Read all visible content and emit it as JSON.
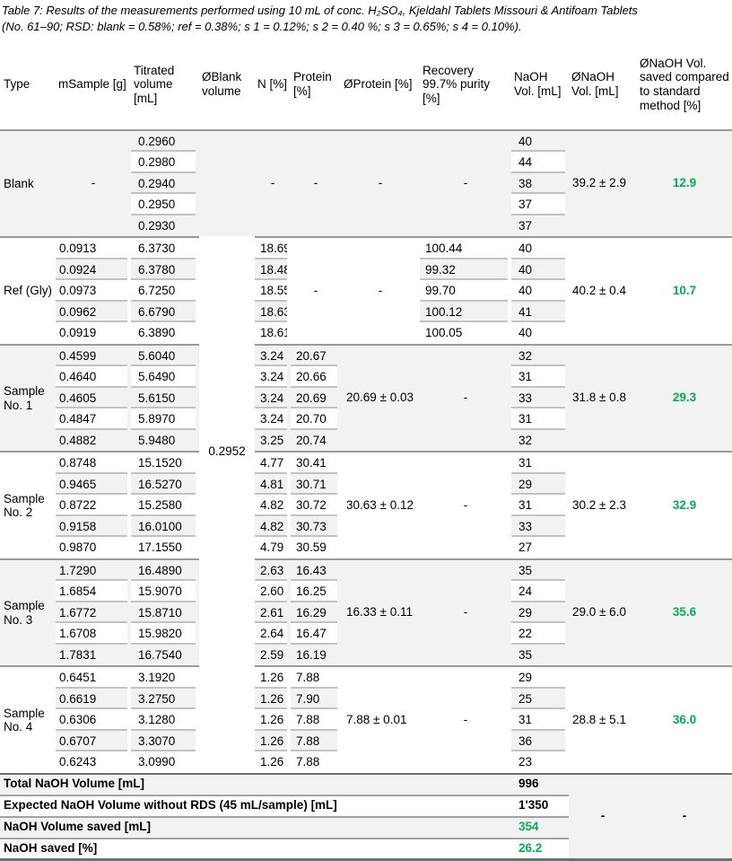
{
  "caption": {
    "line1": "Table 7: Results of the measurements performed using 10 mL of conc. H₂SO₄, Kjeldahl Tablets Missouri & Antifoam Tablets",
    "line2": "(No. 61–90; RSD: blank = 0.58%; ref = 0.38%; s 1 = 0.12%; s 2 = 0.40 %; s 3 = 0.65%; s 4 = 0.10%)."
  },
  "colors": {
    "accent_green": "#00b050",
    "block_gray": "#f2f2f2"
  },
  "table": {
    "headers": [
      "Type",
      "mSample [g]",
      "Titrated volume [mL]",
      "ØBlank volume",
      "N [%]",
      "Protein [%]",
      "ØProtein [%]",
      "Recovery 99.7% purity [%]",
      "NaOH Vol. [mL]",
      "ØNaOH Vol. [mL]",
      "ØNaOH Vol. saved compared to standard method [%]"
    ],
    "oblank_value": "0.2952",
    "blocks": [
      {
        "type": "Blank",
        "shade": "gray",
        "msample": "-",
        "titrated": [
          "0.2960",
          "0.2980",
          "0.2940",
          "0.2950",
          "0.2930"
        ],
        "n": "-",
        "protein": "-",
        "oprotein": "-",
        "recovery": "-",
        "naoh": [
          "40",
          "44",
          "38",
          "37",
          "37"
        ],
        "onaoh": "39.2 ± 2.9",
        "saved": "12.9"
      },
      {
        "type": "Ref (Gly)",
        "shade": "white",
        "msample": [
          "0.0913",
          "0.0924",
          "0.0973",
          "0.0962",
          "0.0919"
        ],
        "titrated": [
          "6.3730",
          "6.3780",
          "6.7250",
          "6.6790",
          "6.3890"
        ],
        "n": [
          "18.69",
          "18.48",
          "18.55",
          "18.63",
          "18.61"
        ],
        "protein": "-",
        "oprotein": "-",
        "recovery": [
          "100.44",
          "99.32",
          "99.70",
          "100.12",
          "100.05"
        ],
        "naoh": [
          "40",
          "40",
          "40",
          "41",
          "40"
        ],
        "onaoh": "40.2 ± 0.4",
        "saved": "10.7"
      },
      {
        "type": "Sample No. 1",
        "shade": "gray",
        "msample": [
          "0.4599",
          "0.4640",
          "0.4605",
          "0.4847",
          "0.4882"
        ],
        "titrated": [
          "5.6040",
          "5.6490",
          "5.6150",
          "5.8970",
          "5.9480"
        ],
        "n": [
          "3.24",
          "3.24",
          "3.24",
          "3.24",
          "3.25"
        ],
        "protein": [
          "20.67",
          "20.66",
          "20.69",
          "20.70",
          "20.74"
        ],
        "oprotein": "20.69 ± 0.03",
        "recovery": "-",
        "naoh": [
          "32",
          "31",
          "33",
          "31",
          "32"
        ],
        "onaoh": "31.8 ± 0.8",
        "saved": "29.3"
      },
      {
        "type": "Sample No. 2",
        "shade": "white",
        "msample": [
          "0.8748",
          "0.9465",
          "0.8722",
          "0.9158",
          "0.9870"
        ],
        "titrated": [
          "15.1520",
          "16.5270",
          "15.2580",
          "16.0100",
          "17.1550"
        ],
        "n": [
          "4.77",
          "4.81",
          "4.82",
          "4.82",
          "4.79"
        ],
        "protein": [
          "30.41",
          "30.71",
          "30.72",
          "30.73",
          "30.59"
        ],
        "oprotein": "30.63 ± 0.12",
        "recovery": "-",
        "naoh": [
          "31",
          "29",
          "31",
          "33",
          "27"
        ],
        "onaoh": "30.2 ± 2.3",
        "saved": "32.9"
      },
      {
        "type": "Sample No. 3",
        "shade": "gray",
        "msample": [
          "1.7290",
          "1.6854",
          "1.6772",
          "1.6708",
          "1.7831"
        ],
        "titrated": [
          "16.4890",
          "15.9070",
          "15.8710",
          "15.9820",
          "16.7540"
        ],
        "n": [
          "2.63",
          "2.60",
          "2.61",
          "2.64",
          "2.59"
        ],
        "protein": [
          "16.43",
          "16.25",
          "16.29",
          "16.47",
          "16.19"
        ],
        "oprotein": "16.33 ± 0.11",
        "recovery": "-",
        "naoh": [
          "35",
          "24",
          "29",
          "22",
          "35"
        ],
        "onaoh": "29.0 ± 6.0",
        "saved": "35.6"
      },
      {
        "type": "Sample No. 4",
        "shade": "white",
        "msample": [
          "0.6451",
          "0.6619",
          "0.6306",
          "0.6707",
          "0.6243"
        ],
        "titrated": [
          "3.1920",
          "3.2750",
          "3.1280",
          "3.3070",
          "3.0990"
        ],
        "n": [
          "1.26",
          "1.26",
          "1.26",
          "1.26",
          "1.26"
        ],
        "protein": [
          "7.88",
          "7.90",
          "7.88",
          "7.88",
          "7.88"
        ],
        "oprotein": "7.88 ± 0.01",
        "recovery": "-",
        "naoh": [
          "29",
          "25",
          "31",
          "36",
          "23"
        ],
        "onaoh": "28.8 ± 5.1",
        "saved": "36.0"
      }
    ],
    "footer": {
      "rows": [
        {
          "label": "Total NaOH Volume [mL]",
          "value": "996",
          "green": false
        },
        {
          "label": "Expected NaOH Volume without RDS (45 mL/sample) [mL]",
          "value": "1'350",
          "green": false
        },
        {
          "label": "NaOH Volume saved [mL]",
          "value": "354",
          "green": true
        },
        {
          "label": "NaOH saved [%]",
          "value": "26.2",
          "green": true
        }
      ],
      "dashes": [
        "-",
        "-"
      ]
    }
  }
}
